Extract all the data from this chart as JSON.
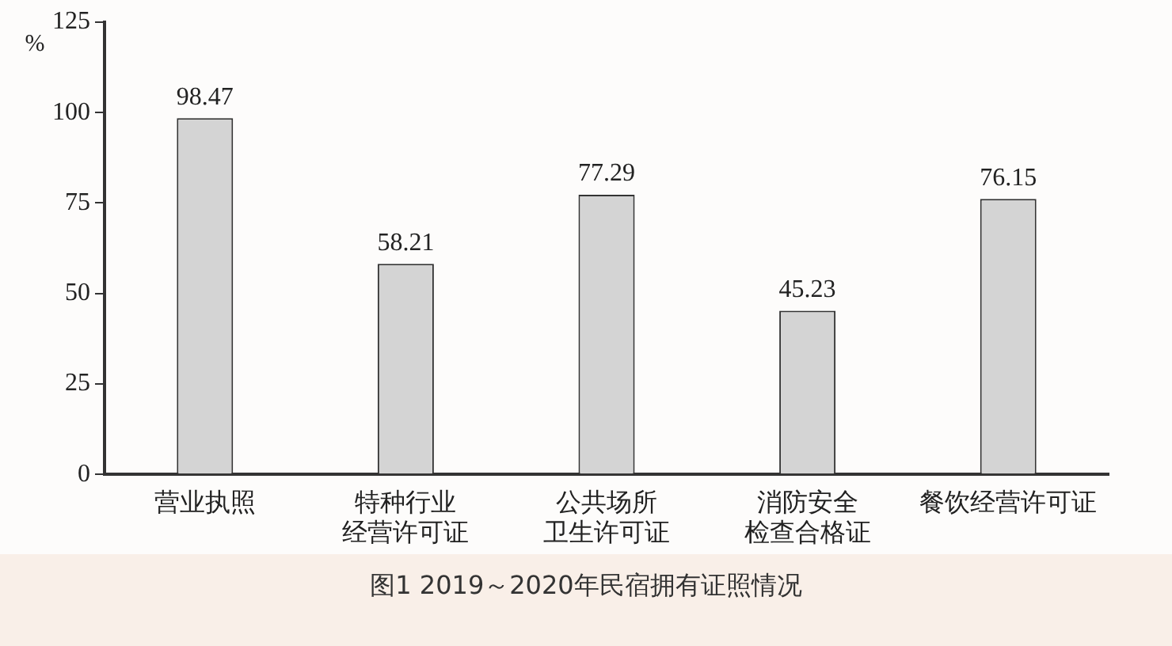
{
  "chart_data": {
    "type": "bar",
    "ylabel": "%",
    "categories": [
      "营业执照",
      "特种行业经营许可证",
      "公共场所卫生许可证",
      "消防安全检查合格证",
      "餐饮经营许可证"
    ],
    "values": [
      98.47,
      58.21,
      77.29,
      45.23,
      76.15
    ],
    "color": "#d4d4d4",
    "ylim": [
      0,
      125
    ],
    "yticks": [
      0,
      25,
      50,
      75,
      100,
      125
    ],
    "grid": false,
    "data_labels": true,
    "annotations": [
      "图1 2019～2020年民宿拥有证照情况"
    ]
  }
}
